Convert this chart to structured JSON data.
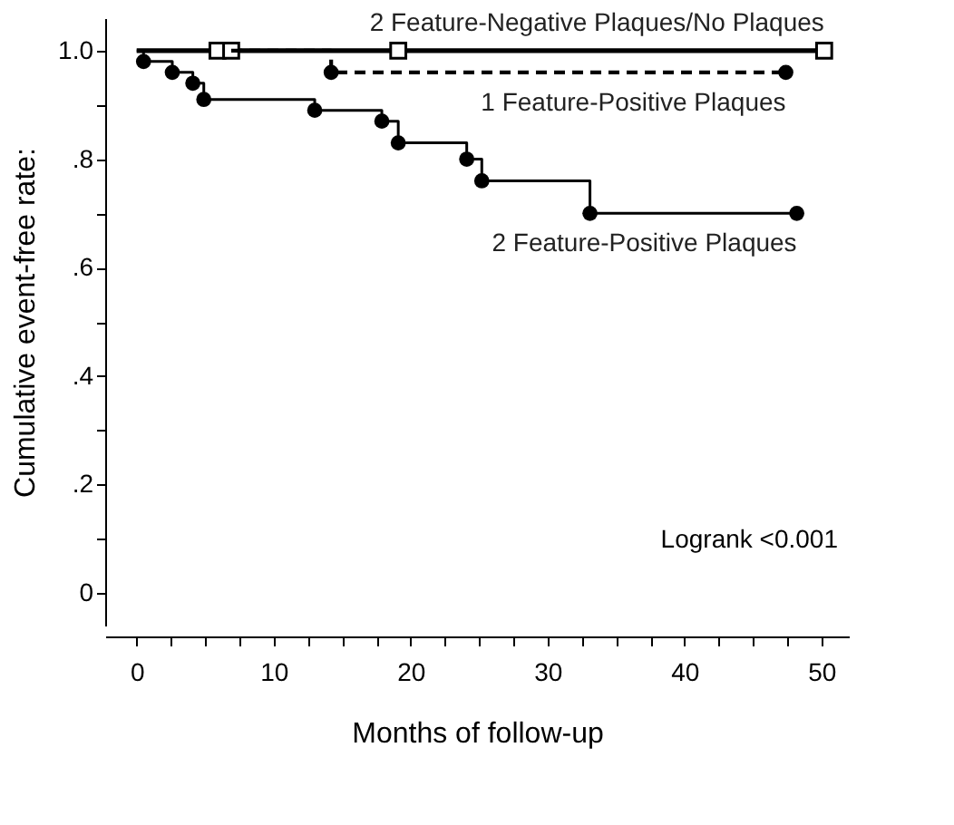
{
  "chart_data": {
    "type": "step",
    "xlabel": "Months of follow-up",
    "ylabel": "Cumulative event-free rate:",
    "series": [
      {
        "name": "2 Feature-Negative Plaques/No Plaques",
        "color": "#000000",
        "marker": "square",
        "line_style": "solid",
        "x": [
          0,
          5.9,
          6.9,
          19.1,
          50.2
        ],
        "values": [
          1.0,
          1.0,
          1.0,
          1.0,
          1.0
        ]
      },
      {
        "name": "1 Feature-Positive Plaques",
        "color": "#000000",
        "marker": "circle",
        "line_style": "dashed",
        "x": [
          6.9,
          14.2,
          47.4
        ],
        "values": [
          1.0,
          0.96,
          0.96
        ]
      },
      {
        "name": "2 Feature-Positive Plaques",
        "color": "#000000",
        "marker": "circle",
        "line_style": "solid",
        "x": [
          0,
          0.5,
          2.6,
          4.1,
          4.9,
          13.0,
          17.9,
          19.1,
          24.1,
          25.2,
          33.1,
          48.2
        ],
        "values": [
          1.0,
          0.98,
          0.96,
          0.94,
          0.91,
          0.89,
          0.87,
          0.83,
          0.8,
          0.76,
          0.7,
          0.7
        ]
      }
    ],
    "xlim": [
      -2.3,
      52
    ],
    "ylim": [
      -0.06,
      1.06
    ],
    "xticks": [
      0,
      {
        "value": 2.5,
        "label": null
      },
      {
        "value": 5,
        "label": null
      },
      {
        "value": 7.5,
        "label": null
      },
      10,
      {
        "value": 12.5,
        "label": null
      },
      {
        "value": 15,
        "label": null
      },
      {
        "value": 17.5,
        "label": null
      },
      20,
      {
        "value": 22.5,
        "label": null
      },
      {
        "value": 25,
        "label": null
      },
      {
        "value": 27.5,
        "label": null
      },
      30,
      {
        "value": 32.5,
        "label": null
      },
      {
        "value": 35,
        "label": null
      },
      {
        "value": 37.5,
        "label": null
      },
      40,
      {
        "value": 42.5,
        "label": null
      },
      {
        "value": 45,
        "label": null
      },
      {
        "value": 47.5,
        "label": null
      },
      50
    ],
    "yticks": [
      0,
      {
        "value": 0.1,
        "label": null
      },
      {
        "value": 0.2,
        "label": ".2"
      },
      {
        "value": 0.3,
        "label": null
      },
      {
        "value": 0.4,
        "label": ".4"
      },
      {
        "value": 0.5,
        "label": null
      },
      {
        "value": 0.6,
        "label": ".6"
      },
      {
        "value": 0.7,
        "label": null
      },
      {
        "value": 0.8,
        "label": ".8"
      },
      {
        "value": 0.9,
        "label": null
      },
      {
        "value": 1.0,
        "label": "1.0"
      }
    ],
    "annotations": [
      "Logrank <0.001"
    ],
    "grid": false,
    "legend": false
  }
}
